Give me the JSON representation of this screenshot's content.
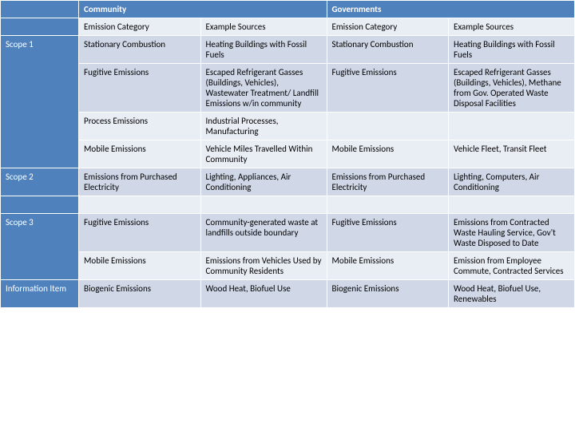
{
  "header": {
    "community": "Community",
    "governments": "Governments",
    "emission_cat": "Emission Category",
    "example_src": "Example Sources"
  },
  "scopes": {
    "s1": {
      "label": "Scope 1"
    },
    "s2": {
      "label": "Scope 2"
    },
    "s3": {
      "label": "Scope 3"
    },
    "info": {
      "label": "Information Item"
    }
  },
  "cells": {
    "c1": "Stationary Combustion",
    "c2": "Heating Buildings with Fossil Fuels",
    "c3": "Stationary Combustion",
    "c4": "Heating Buildings with Fossil Fuels",
    "c5": "Fugitive Emissions",
    "c6": "Escaped Refrigerant Gasses (Buildings, Vehicles), Wastewater Treatment/ Landfill Emissions w/in community",
    "c7": "Fugitive Emissions",
    "c8": "Escaped Refrigerant Gasses (Buildings, Vehicles), Methane from Gov. Operated Waste Disposal Facilities",
    "c9": "Process Emissions",
    "c10": "Industrial Processes, Manufacturing",
    "c11": "Mobile Emissions",
    "c12": "Vehicle Miles Travelled Within Community",
    "c13": "Mobile Emissions",
    "c14": "Vehicle Fleet, Transit Fleet",
    "c15": "Emissions from Purchased Electricity",
    "c16": "Lighting, Appliances, Air Conditioning",
    "c17": "Emissions from Purchased Electricity",
    "c18": "Lighting, Computers, Air Conditioning",
    "c19": "Fugitive Emissions",
    "c20": "Community-generated waste at landfills outside boundary",
    "c21": "Fugitive Emissions",
    "c22": "Emissions from Contracted Waste Hauling Service, Gov't Waste Disposed to Date",
    "c23": "Mobile Emissions",
    "c24": "Emissions from Vehicles Used by Community Residents",
    "c25": "Mobile Emissions",
    "c26": "Emission from Employee Commute, Contracted Services",
    "c27": "Biogenic Emissions",
    "c28": "Wood Heat, Biofuel Use",
    "c29": "Biogenic Emissions",
    "c30": "Wood Heat, Biofuel Use, Renewables"
  }
}
